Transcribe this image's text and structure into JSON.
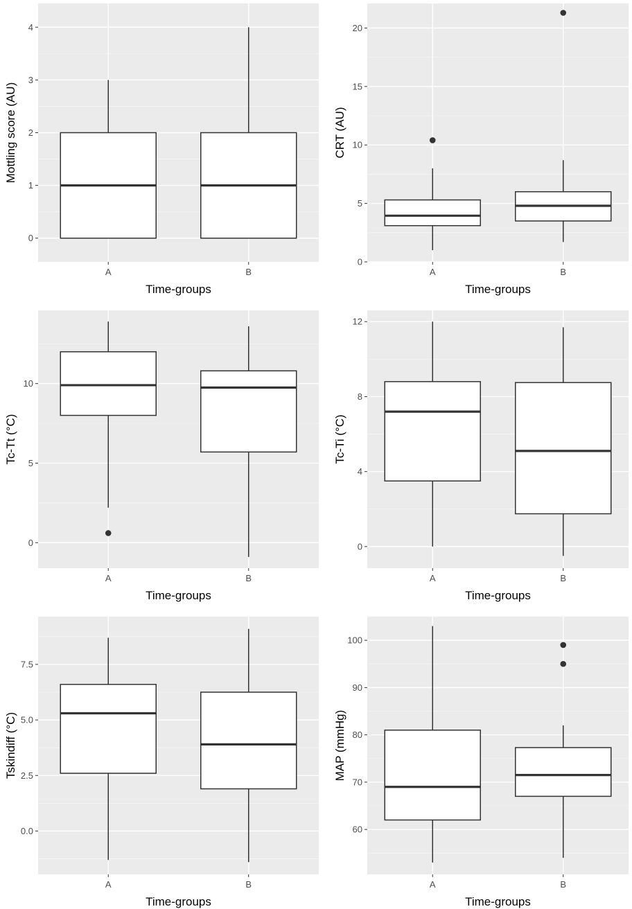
{
  "colors": {
    "panel_bg": "#ebebeb",
    "grid_major": "#ffffff",
    "grid_minor": "#f5f5f5",
    "box_fill": "#ffffff",
    "box_line": "#333333",
    "outlier": "#333333",
    "tick_text": "#4d4d4d"
  },
  "chart_data": [
    {
      "type": "boxplot",
      "xlabel": "Time-groups",
      "ylabel": "Mottling score (AU)",
      "categories": [
        "A",
        "B"
      ],
      "ylim": [
        -0.45,
        4.45
      ],
      "yticks": [
        0,
        1,
        2,
        3,
        4
      ],
      "ytick_labels": [
        "0",
        "1",
        "2",
        "3",
        "4"
      ],
      "grid": true,
      "boxes": [
        {
          "group": "A",
          "whisker_low": 0,
          "q1": 0,
          "median": 1,
          "q3": 2,
          "whisker_high": 3,
          "outliers": []
        },
        {
          "group": "B",
          "whisker_low": 0,
          "q1": 0,
          "median": 1,
          "q3": 2,
          "whisker_high": 4,
          "outliers": []
        }
      ]
    },
    {
      "type": "boxplot",
      "xlabel": "Time-groups",
      "ylabel": "CRT (AU)",
      "categories": [
        "A",
        "B"
      ],
      "ylim": [
        0,
        22.1
      ],
      "yticks": [
        0,
        5,
        10,
        15,
        20
      ],
      "ytick_labels": [
        "0",
        "5",
        "10",
        "15",
        "20"
      ],
      "grid": true,
      "boxes": [
        {
          "group": "A",
          "whisker_low": 1.0,
          "q1": 3.1,
          "median": 3.95,
          "q3": 5.3,
          "whisker_high": 8.0,
          "outliers": [
            10.4
          ]
        },
        {
          "group": "B",
          "whisker_low": 1.7,
          "q1": 3.5,
          "median": 4.8,
          "q3": 6.0,
          "whisker_high": 8.7,
          "outliers": [
            21.3
          ]
        }
      ]
    },
    {
      "type": "boxplot",
      "xlabel": "Time-groups",
      "ylabel": "Tc-Tt (°C)",
      "categories": [
        "A",
        "B"
      ],
      "ylim": [
        -1.6,
        14.6
      ],
      "yticks": [
        0,
        5,
        10
      ],
      "ytick_labels": [
        "0",
        "5",
        "10"
      ],
      "grid": true,
      "boxes": [
        {
          "group": "A",
          "whisker_low": 2.2,
          "q1": 8.0,
          "median": 9.9,
          "q3": 12.0,
          "whisker_high": 13.9,
          "outliers": [
            0.6
          ]
        },
        {
          "group": "B",
          "whisker_low": -0.9,
          "q1": 5.7,
          "median": 9.75,
          "q3": 10.8,
          "whisker_high": 13.6,
          "outliers": []
        }
      ]
    },
    {
      "type": "boxplot",
      "xlabel": "Time-groups",
      "ylabel": "Tc-Ti (°C)",
      "categories": [
        "A",
        "B"
      ],
      "ylim": [
        -1.15,
        12.6
      ],
      "yticks": [
        0,
        4,
        8,
        12
      ],
      "ytick_labels": [
        "0",
        "4",
        "8",
        "12"
      ],
      "grid": true,
      "boxes": [
        {
          "group": "A",
          "whisker_low": 0.0,
          "q1": 3.5,
          "median": 7.2,
          "q3": 8.8,
          "whisker_high": 12.0,
          "outliers": []
        },
        {
          "group": "B",
          "whisker_low": -0.5,
          "q1": 1.75,
          "median": 5.1,
          "q3": 8.75,
          "whisker_high": 11.7,
          "outliers": []
        }
      ]
    },
    {
      "type": "boxplot",
      "xlabel": "Time-groups",
      "ylabel": "Tskindiff (°C)",
      "categories": [
        "A",
        "B"
      ],
      "ylim": [
        -1.95,
        9.65
      ],
      "yticks": [
        0,
        2.5,
        5,
        7.5
      ],
      "ytick_labels": [
        "0.0",
        "2.5",
        "5.0",
        "7.5"
      ],
      "grid": true,
      "boxes": [
        {
          "group": "A",
          "whisker_low": -1.3,
          "q1": 2.6,
          "median": 5.3,
          "q3": 6.6,
          "whisker_high": 8.7,
          "outliers": []
        },
        {
          "group": "B",
          "whisker_low": -1.4,
          "q1": 1.9,
          "median": 3.9,
          "q3": 6.25,
          "whisker_high": 9.1,
          "outliers": []
        }
      ]
    },
    {
      "type": "boxplot",
      "xlabel": "Time-groups",
      "ylabel": "MAP (mmHg)",
      "categories": [
        "A",
        "B"
      ],
      "ylim": [
        50.5,
        105.0
      ],
      "yticks": [
        60,
        70,
        80,
        90,
        100
      ],
      "ytick_labels": [
        "60",
        "70",
        "80",
        "90",
        "100"
      ],
      "grid": true,
      "boxes": [
        {
          "group": "A",
          "whisker_low": 53,
          "q1": 62,
          "median": 69,
          "q3": 81,
          "whisker_high": 103,
          "outliers": []
        },
        {
          "group": "B",
          "whisker_low": 54,
          "q1": 67,
          "median": 71.5,
          "q3": 77.3,
          "whisker_high": 82,
          "outliers": [
            95,
            99
          ]
        }
      ]
    }
  ]
}
